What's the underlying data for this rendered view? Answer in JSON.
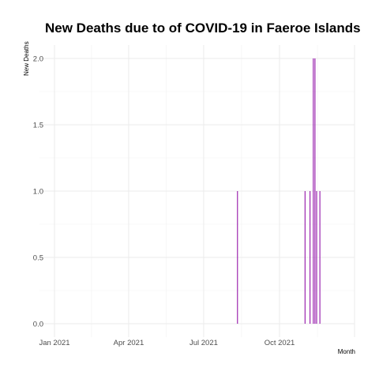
{
  "chart_data": {
    "type": "bar",
    "title": "New Deaths due to of COVID-19 in Faeroe Islands",
    "xlabel": "Month",
    "ylabel": "New Deaths",
    "x_range": [
      "2021-01-01",
      "2021-12-31"
    ],
    "ylim": [
      0,
      2
    ],
    "x_ticks": [
      {
        "date": "2021-01-01",
        "label": "Jan 2021"
      },
      {
        "date": "2021-04-01",
        "label": "Apr 2021"
      },
      {
        "date": "2021-07-01",
        "label": "Jul 2021"
      },
      {
        "date": "2021-10-01",
        "label": "Oct 2021"
      }
    ],
    "y_ticks": [
      {
        "value": 0,
        "label": "0.0"
      },
      {
        "value": 0.5,
        "label": "0.5"
      },
      {
        "value": 1,
        "label": "1.0"
      },
      {
        "value": 1.5,
        "label": "1.5"
      },
      {
        "value": 2,
        "label": "2.0"
      }
    ],
    "series": [
      {
        "color": "#9c27b0",
        "points": [
          {
            "date": "2021-08-11",
            "value": 1
          },
          {
            "date": "2021-11-01",
            "value": 1
          },
          {
            "date": "2021-11-07",
            "value": 1
          },
          {
            "date": "2021-11-11",
            "value": 2
          },
          {
            "date": "2021-11-13",
            "value": 2
          },
          {
            "date": "2021-11-15",
            "value": 1
          },
          {
            "date": "2021-11-19",
            "value": 1
          }
        ]
      }
    ],
    "grid": true
  }
}
